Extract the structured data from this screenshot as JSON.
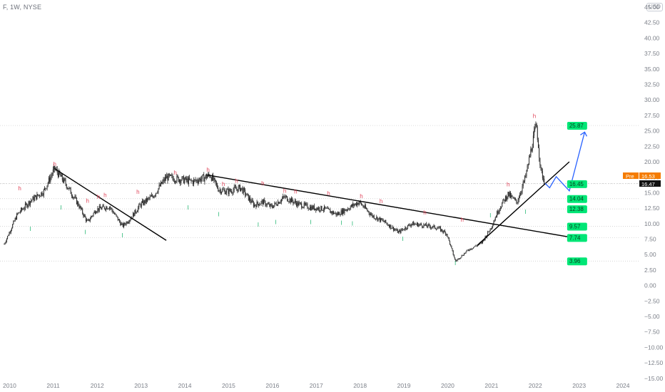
{
  "header": {
    "symbol_title": "F, 1W, NYSE",
    "currency": "USD"
  },
  "price_badges": {
    "pre_label": "Pre",
    "pre_value": "16.53",
    "last_value": "16.47"
  },
  "colors": {
    "candle": "#2b2b2b",
    "trendline": "#000000",
    "projection": "#2962ff",
    "target": "#00e676",
    "high_label": "#e0445a",
    "low_label": "#17b26a",
    "pre": "#f57c00",
    "level": "#c8c8c8"
  },
  "chart_data": {
    "type": "line",
    "title": "F, 1W, NYSE",
    "xlabel": "",
    "ylabel": "",
    "ylim": [
      -15,
      45
    ],
    "yticks": [
      "45.00",
      "42.50",
      "40.00",
      "37.50",
      "35.00",
      "32.50",
      "30.00",
      "27.50",
      "25.00",
      "22.50",
      "20.00",
      "17.50",
      "15.00",
      "12.50",
      "10.00",
      "7.50",
      "5.00",
      "2.50",
      "0.00",
      "−2.50",
      "−5.00",
      "−7.50",
      "−10.00",
      "−12.50",
      "−15.00"
    ],
    "xticks": [
      "2010",
      "2011",
      "2012",
      "2013",
      "2014",
      "2015",
      "2016",
      "2017",
      "2018",
      "2019",
      "2020",
      "2021",
      "2022",
      "2023",
      "2024"
    ],
    "price_series": {
      "x": [
        2009.9,
        2010.2,
        2010.5,
        2010.8,
        2011.05,
        2011.3,
        2011.6,
        2011.8,
        2012.0,
        2012.3,
        2012.6,
        2012.8,
        2013.0,
        2013.3,
        2013.6,
        2013.9,
        2014.2,
        2014.5,
        2014.6,
        2014.8,
        2015.0,
        2015.3,
        2015.6,
        2015.8,
        2016.0,
        2016.3,
        2016.6,
        2016.9,
        2017.2,
        2017.5,
        2017.8,
        2018.0,
        2018.3,
        2018.6,
        2018.9,
        2019.2,
        2019.5,
        2019.8,
        2020.0,
        2020.2,
        2020.5,
        2020.8,
        2021.0,
        2021.2,
        2021.4,
        2021.6,
        2021.8,
        2022.0,
        2022.05,
        2022.15,
        2022.25
      ],
      "values": [
        6.7,
        11.5,
        13.7,
        15.2,
        18.9,
        16.5,
        13.0,
        10.2,
        12.3,
        12.8,
        9.6,
        11.0,
        13.0,
        14.5,
        17.5,
        17.2,
        16.8,
        17.5,
        17.9,
        15.5,
        15.2,
        15.8,
        13.0,
        13.5,
        12.7,
        14.3,
        13.2,
        12.6,
        12.4,
        11.5,
        12.7,
        13.5,
        11.3,
        10.2,
        8.6,
        10.0,
        9.7,
        9.3,
        8.4,
        3.9,
        5.8,
        6.9,
        9.2,
        12.5,
        14.8,
        13.4,
        17.5,
        24.5,
        25.87,
        18.5,
        16.47
      ]
    },
    "tags": [
      "25.87",
      "16.45",
      "14.04",
      "12.38",
      "9.57",
      "7.74",
      "3.96"
    ],
    "trendlines": [
      {
        "name": "2011 downtrend",
        "x": [
          2011.05,
          2013.6
        ],
        "y": [
          18.9,
          7.3
        ]
      },
      {
        "name": "2014 downtrend",
        "x": [
          2014.5,
          2023.0
        ],
        "y": [
          17.9,
          7.6
        ]
      },
      {
        "name": "2020 uptrend",
        "x": [
          2020.7,
          2022.8
        ],
        "y": [
          6.5,
          20.0
        ]
      }
    ],
    "projection": {
      "x": [
        2022.25,
        2022.35,
        2022.5,
        2022.8,
        2023.15
      ],
      "y": [
        16.5,
        15.8,
        17.6,
        15.3,
        24.8
      ]
    },
    "high_labels": [
      "h",
      "h",
      "h",
      "h",
      "h",
      "h",
      "h",
      "h",
      "h",
      "h",
      "h",
      "h",
      "h",
      "h",
      "h",
      "h",
      "h",
      "h",
      "h",
      "h"
    ],
    "low_labels": [
      "l",
      "l",
      "l",
      "l",
      "l",
      "l",
      "l",
      "l",
      "l",
      "l",
      "l",
      "l",
      "l",
      "l",
      "l"
    ]
  }
}
